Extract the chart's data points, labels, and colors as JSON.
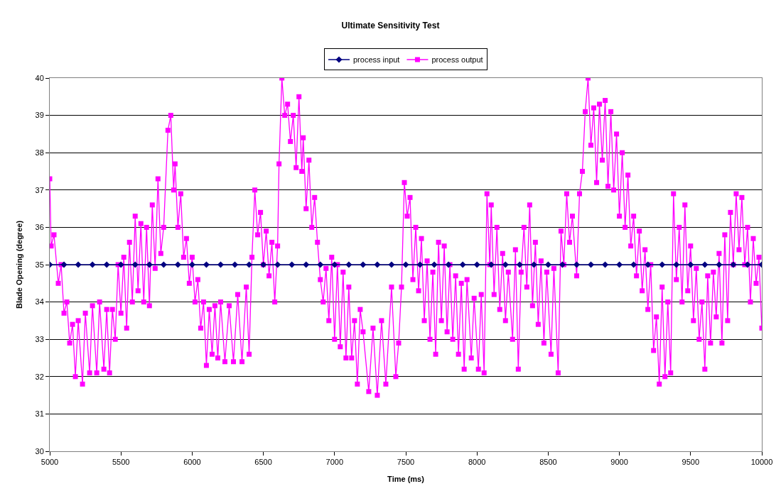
{
  "chart_data": {
    "type": "line",
    "title": "Ultimate Sensitivity Test",
    "xlabel": "Time (ms)",
    "ylabel": "Blade Opening (degree)",
    "xlim": [
      5000,
      10000
    ],
    "xticks": [
      5000,
      5500,
      6000,
      6500,
      7000,
      7500,
      8000,
      8500,
      9000,
      9500,
      10000
    ],
    "ylim": [
      30,
      40
    ],
    "yticks": [
      30,
      31,
      32,
      33,
      34,
      35,
      36,
      37,
      38,
      39,
      40
    ],
    "grid": "y",
    "legend": "top",
    "series": [
      {
        "name": "process input",
        "color": "#000080",
        "marker": "diamond",
        "x": [
          5000,
          5100,
          5200,
          5300,
          5400,
          5500,
          5600,
          5700,
          5800,
          5900,
          6000,
          6100,
          6200,
          6300,
          6400,
          6500,
          6600,
          6700,
          6800,
          6900,
          7000,
          7100,
          7200,
          7300,
          7400,
          7500,
          7600,
          7700,
          7800,
          7900,
          8000,
          8100,
          8200,
          8300,
          8400,
          8500,
          8600,
          8700,
          8800,
          8900,
          9000,
          9100,
          9200,
          9300,
          9400,
          9500,
          9600,
          9700,
          9800,
          9900,
          10000
        ],
        "values": [
          35,
          35,
          35,
          35,
          35,
          35,
          35,
          35,
          35,
          35,
          35,
          35,
          35,
          35,
          35,
          35,
          35,
          35,
          35,
          35,
          35,
          35,
          35,
          35,
          35,
          35,
          35,
          35,
          35,
          35,
          35,
          35,
          35,
          35,
          35,
          35,
          35,
          35,
          35,
          35,
          35,
          35,
          35,
          35,
          35,
          35,
          35,
          35,
          35,
          35,
          35
        ]
      },
      {
        "name": "process output",
        "color": "#ff00ff",
        "marker": "square",
        "x": [
          5000,
          5010,
          5030,
          5060,
          5080,
          5100,
          5120,
          5140,
          5160,
          5180,
          5200,
          5230,
          5250,
          5280,
          5300,
          5330,
          5350,
          5380,
          5400,
          5420,
          5440,
          5460,
          5480,
          5500,
          5520,
          5540,
          5560,
          5580,
          5600,
          5620,
          5640,
          5660,
          5680,
          5700,
          5720,
          5740,
          5760,
          5780,
          5800,
          5830,
          5850,
          5870,
          5880,
          5900,
          5920,
          5940,
          5960,
          5980,
          6000,
          6020,
          6040,
          6060,
          6080,
          6100,
          6120,
          6140,
          6160,
          6180,
          6200,
          6230,
          6260,
          6290,
          6320,
          6350,
          6380,
          6400,
          6420,
          6440,
          6460,
          6480,
          6500,
          6520,
          6540,
          6560,
          6580,
          6600,
          6610,
          6630,
          6650,
          6670,
          6690,
          6710,
          6730,
          6750,
          6770,
          6780,
          6800,
          6820,
          6840,
          6860,
          6880,
          6900,
          6920,
          6940,
          6960,
          6980,
          7000,
          7020,
          7040,
          7060,
          7080,
          7100,
          7120,
          7140,
          7160,
          7180,
          7200,
          7240,
          7270,
          7300,
          7330,
          7360,
          7400,
          7430,
          7450,
          7470,
          7490,
          7510,
          7530,
          7550,
          7570,
          7590,
          7610,
          7630,
          7650,
          7670,
          7690,
          7710,
          7730,
          7750,
          7770,
          7790,
          7810,
          7830,
          7850,
          7870,
          7890,
          7910,
          7930,
          7960,
          7980,
          8010,
          8030,
          8050,
          8070,
          8090,
          8100,
          8120,
          8140,
          8160,
          8180,
          8200,
          8220,
          8250,
          8270,
          8290,
          8310,
          8330,
          8350,
          8370,
          8390,
          8410,
          8430,
          8450,
          8470,
          8490,
          8520,
          8540,
          8570,
          8590,
          8610,
          8630,
          8650,
          8670,
          8700,
          8720,
          8740,
          8760,
          8780,
          8800,
          8820,
          8840,
          8860,
          8880,
          8900,
          8920,
          8940,
          8960,
          8980,
          9000,
          9020,
          9040,
          9060,
          9080,
          9100,
          9120,
          9140,
          9160,
          9180,
          9200,
          9220,
          9240,
          9260,
          9280,
          9300,
          9320,
          9340,
          9360,
          9380,
          9400,
          9420,
          9440,
          9460,
          9480,
          9500,
          9520,
          9540,
          9560,
          9580,
          9600,
          9620,
          9640,
          9660,
          9680,
          9700,
          9720,
          9740,
          9760,
          9780,
          9800,
          9820,
          9840,
          9860,
          9880,
          9900,
          9920,
          9940,
          9960,
          9980,
          10000
        ],
        "values": [
          37.3,
          35.5,
          35.8,
          34.5,
          35.0,
          33.7,
          34.0,
          32.9,
          33.4,
          32.0,
          33.5,
          31.8,
          33.7,
          32.1,
          33.9,
          32.1,
          34.0,
          32.2,
          33.8,
          32.1,
          33.8,
          33.0,
          35.0,
          33.7,
          35.2,
          33.3,
          35.6,
          34.0,
          36.3,
          34.3,
          36.1,
          34.0,
          36.0,
          33.9,
          36.6,
          34.9,
          37.3,
          35.3,
          36.0,
          38.6,
          39.0,
          37.0,
          37.7,
          36.0,
          36.9,
          35.2,
          35.7,
          34.5,
          35.2,
          34.0,
          34.6,
          33.3,
          34.0,
          32.3,
          33.8,
          32.6,
          33.9,
          32.5,
          34.0,
          32.4,
          33.9,
          32.4,
          34.2,
          32.4,
          34.4,
          32.6,
          35.2,
          37.0,
          35.8,
          36.4,
          35.0,
          35.9,
          34.7,
          35.6,
          34.0,
          35.5,
          37.7,
          40.0,
          39.0,
          39.3,
          38.3,
          39.0,
          37.6,
          39.5,
          37.5,
          38.4,
          36.5,
          37.8,
          36.0,
          36.8,
          35.6,
          34.6,
          34.0,
          34.9,
          33.5,
          35.2,
          33.0,
          35.0,
          32.8,
          34.8,
          32.5,
          34.4,
          32.5,
          33.5,
          31.8,
          33.8,
          33.2,
          31.6,
          33.3,
          31.5,
          33.5,
          31.8,
          34.4,
          32.0,
          32.9,
          34.4,
          37.2,
          36.3,
          36.8,
          34.6,
          36.0,
          34.3,
          35.7,
          33.5,
          35.1,
          33.0,
          34.8,
          32.6,
          35.6,
          33.5,
          35.5,
          33.2,
          35.0,
          33.0,
          34.7,
          32.6,
          34.5,
          32.2,
          34.6,
          32.5,
          34.1,
          32.2,
          34.2,
          32.1,
          36.9,
          35.0,
          36.6,
          34.2,
          36.0,
          33.8,
          35.3,
          33.5,
          34.8,
          33.0,
          35.4,
          32.2,
          34.8,
          36.0,
          34.4,
          36.6,
          33.9,
          35.6,
          33.4,
          35.1,
          32.9,
          34.8,
          32.6,
          34.9,
          32.1,
          35.9,
          35.0,
          36.9,
          35.6,
          36.3,
          34.7,
          36.9,
          37.5,
          39.1,
          40.0,
          38.2,
          39.2,
          37.2,
          39.3,
          37.8,
          39.4,
          37.1,
          39.1,
          37.0,
          38.5,
          36.3,
          38.0,
          36.0,
          37.4,
          35.5,
          36.3,
          34.7,
          35.9,
          34.3,
          35.4,
          33.8,
          35.0,
          32.7,
          33.6,
          31.8,
          34.4,
          32.0,
          34.0,
          32.1,
          36.9,
          34.6,
          36.0,
          34.0,
          36.6,
          34.3,
          35.5,
          33.5,
          34.9,
          33.0,
          34.0,
          32.2,
          34.7,
          32.9,
          34.8,
          33.6,
          35.3,
          32.9,
          35.8,
          33.5,
          36.4,
          35.0,
          36.9,
          35.4,
          36.8,
          35.0,
          36.0,
          34.0,
          35.7,
          34.5,
          35.2,
          33.3
        ]
      }
    ]
  }
}
